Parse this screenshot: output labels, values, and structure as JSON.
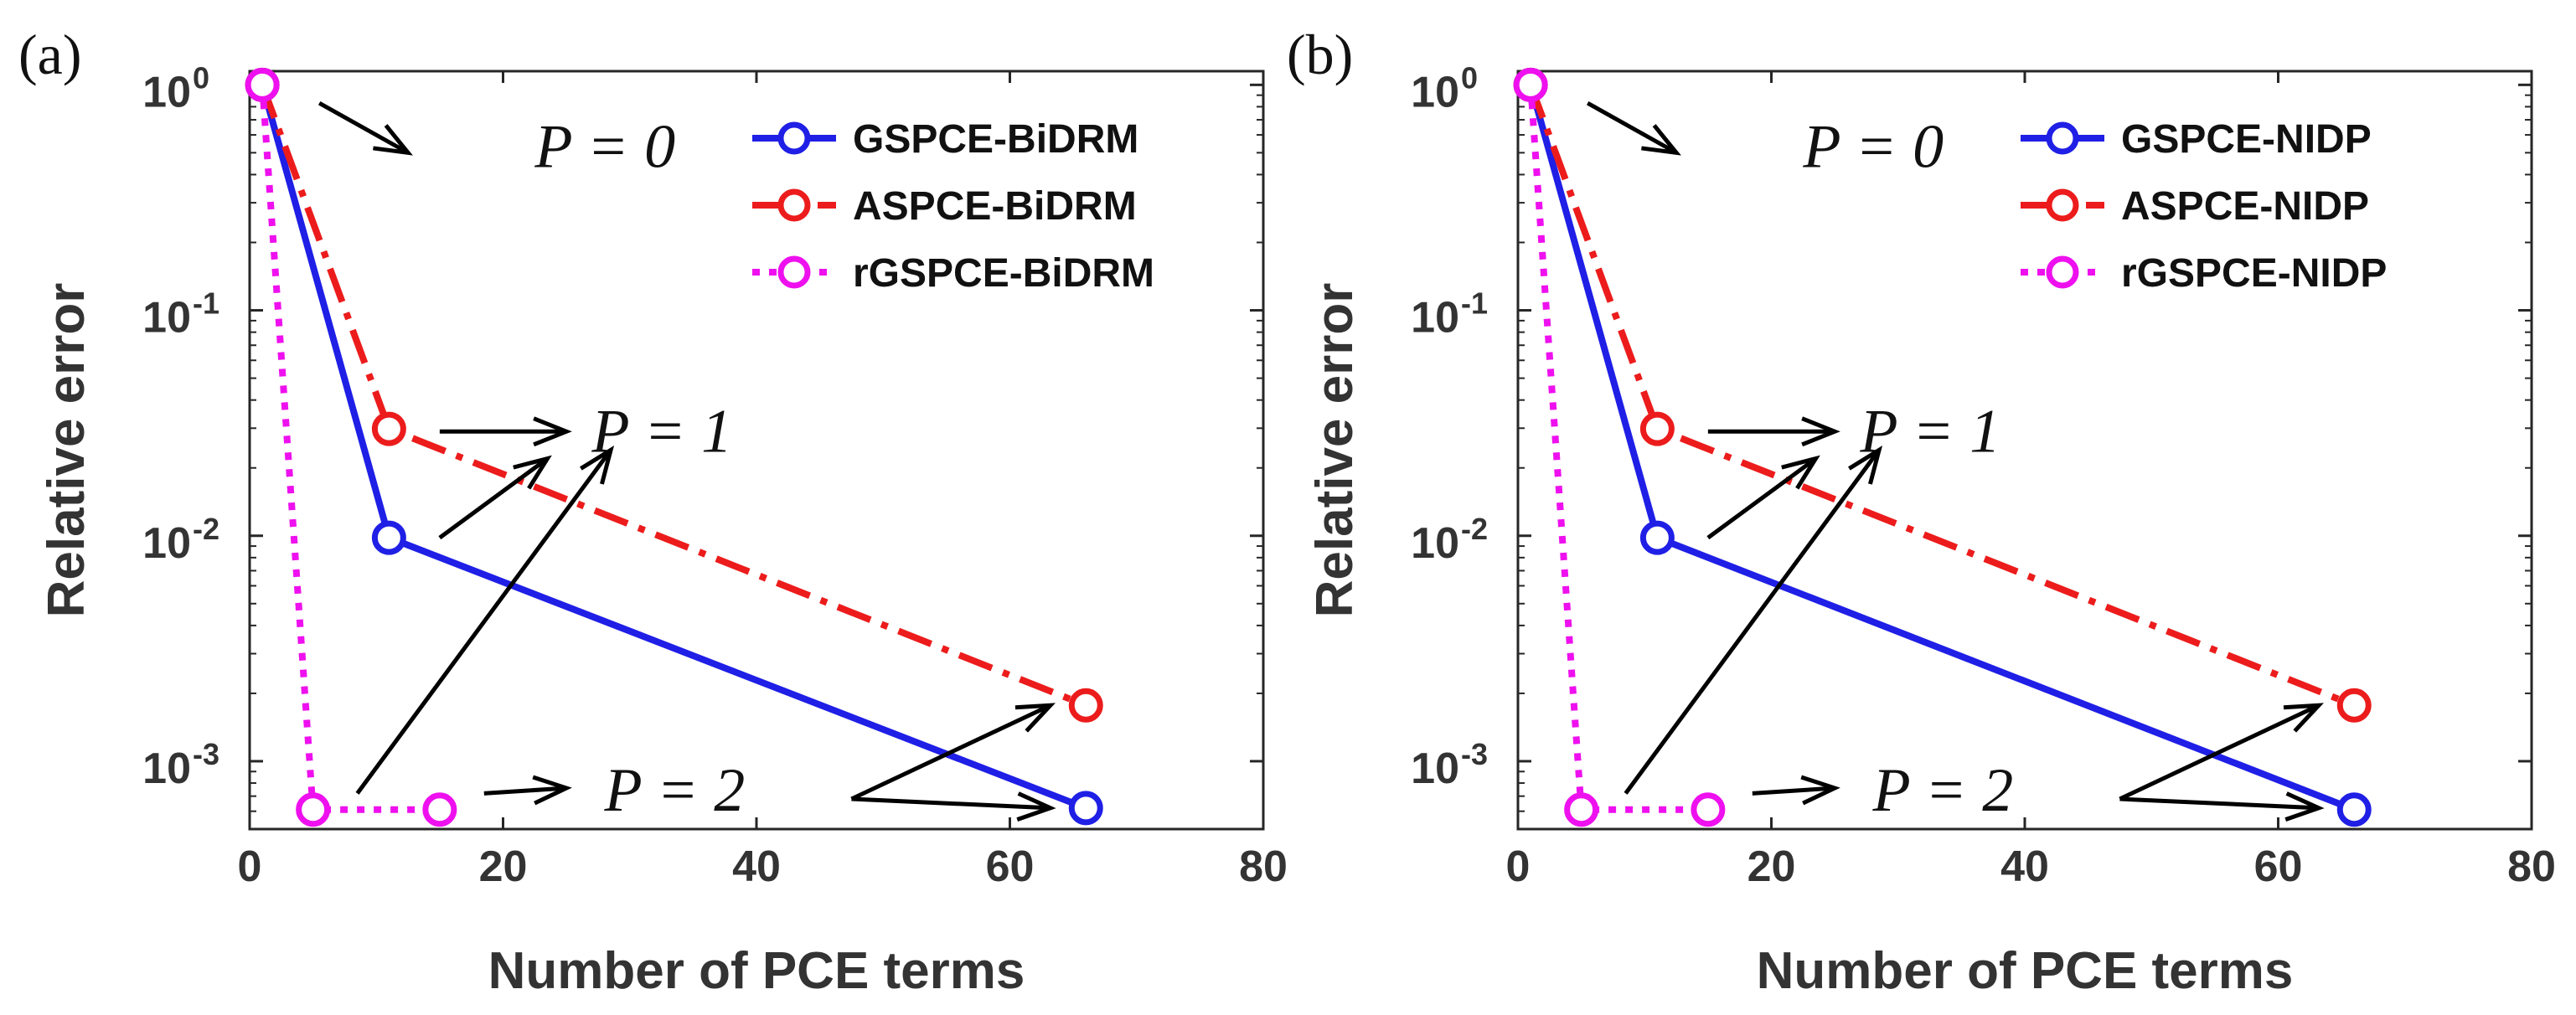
{
  "chart_data": [
    {
      "type": "line",
      "panel_label": "(a)",
      "xlabel": "Number of PCE terms",
      "ylabel": "Relative error",
      "xlim": [
        0,
        80
      ],
      "ylim": [
        0.0005,
        1.15
      ],
      "yscale": "log",
      "grid": false,
      "legend_position": "top-right",
      "x_ticks": [
        0,
        20,
        40,
        60,
        80
      ],
      "x_tick_labels": [
        "0",
        "20",
        "40",
        "60",
        "80"
      ],
      "y_ticks": [
        {
          "value": 1,
          "base": "10",
          "exp": "0"
        },
        {
          "value": 0.1,
          "base": "10",
          "exp": "-1"
        },
        {
          "value": 0.01,
          "base": "10",
          "exp": "-2"
        },
        {
          "value": 0.001,
          "base": "10",
          "exp": "-3"
        }
      ],
      "series": [
        {
          "name": "GSPCE-BiDRM",
          "color": "#1f1fe6",
          "style": "solid",
          "x": [
            1,
            11,
            66
          ],
          "values": [
            1.0,
            0.0098,
            0.00062
          ]
        },
        {
          "name": "ASPCE-BiDRM",
          "color": "#ec1c1c",
          "style": "dashdot",
          "x": [
            1,
            11,
            66
          ],
          "values": [
            1.0,
            0.0298,
            0.00177
          ]
        },
        {
          "name": "rGSPCE-BiDRM",
          "color": "#ee10ee",
          "style": "dotted",
          "x": [
            1,
            5,
            15
          ],
          "values": [
            1.0,
            0.00061,
            0.00061
          ]
        }
      ],
      "annotations": [
        {
          "text": "P = 0",
          "x": 22.5,
          "y": 0.53
        },
        {
          "text": "P = 1",
          "x": 27,
          "y": 0.029
        },
        {
          "text": "P = 2",
          "x": 28,
          "y": 0.00074
        }
      ]
    },
    {
      "type": "line",
      "panel_label": "(b)",
      "xlabel": "Number of PCE terms",
      "ylabel": "Relative error",
      "xlim": [
        0,
        80
      ],
      "ylim": [
        0.0005,
        1.15
      ],
      "yscale": "log",
      "grid": false,
      "legend_position": "top-right",
      "x_ticks": [
        0,
        20,
        40,
        60,
        80
      ],
      "x_tick_labels": [
        "0",
        "20",
        "40",
        "60",
        "80"
      ],
      "y_ticks": [
        {
          "value": 1,
          "base": "10",
          "exp": "0"
        },
        {
          "value": 0.1,
          "base": "10",
          "exp": "-1"
        },
        {
          "value": 0.01,
          "base": "10",
          "exp": "-2"
        },
        {
          "value": 0.001,
          "base": "10",
          "exp": "-3"
        }
      ],
      "series": [
        {
          "name": "GSPCE-NIDP",
          "color": "#1f1fe6",
          "style": "solid",
          "x": [
            1,
            11,
            66
          ],
          "values": [
            1.0,
            0.0098,
            0.00061
          ]
        },
        {
          "name": "ASPCE-NIDP",
          "color": "#ec1c1c",
          "style": "dashdot",
          "x": [
            1,
            11,
            66
          ],
          "values": [
            1.0,
            0.0298,
            0.00177
          ]
        },
        {
          "name": "rGSPCE-NIDP",
          "color": "#ee10ee",
          "style": "dotted",
          "x": [
            1,
            5,
            15
          ],
          "values": [
            1.0,
            0.00061,
            0.00061
          ]
        }
      ],
      "annotations": [
        {
          "text": "P = 0",
          "x": 22.5,
          "y": 0.53
        },
        {
          "text": "P = 1",
          "x": 27,
          "y": 0.029
        },
        {
          "text": "P = 2",
          "x": 28,
          "y": 0.00074
        }
      ]
    }
  ]
}
